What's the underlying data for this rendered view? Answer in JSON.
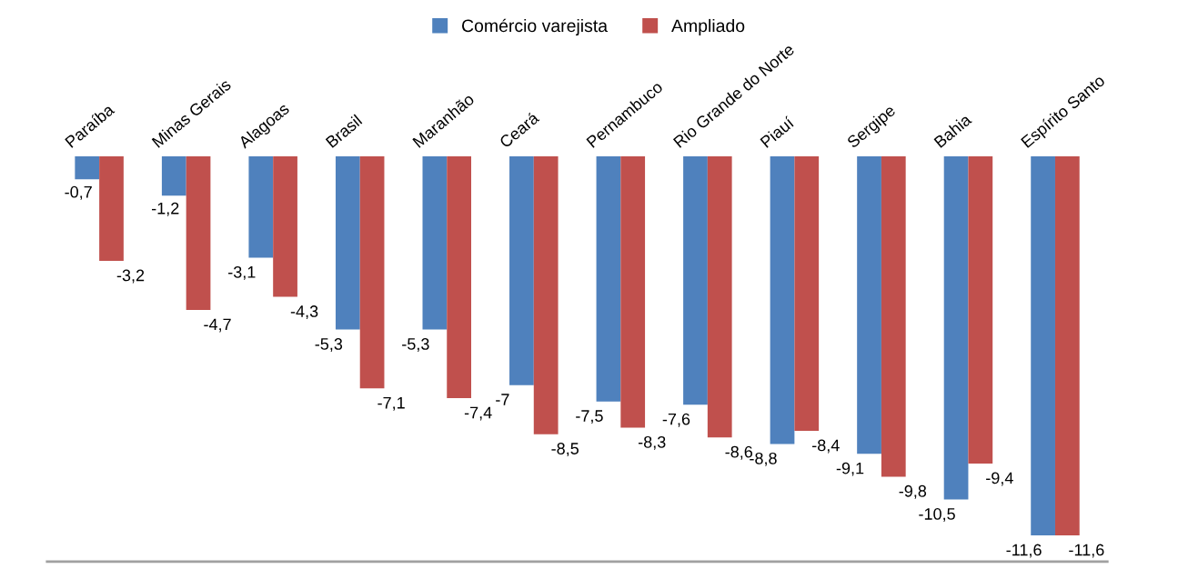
{
  "chart_data": {
    "type": "bar",
    "categories": [
      "Paraíba",
      "Minas Gerais",
      "Alagoas",
      "Brasil",
      "Maranhão",
      "Ceará",
      "Pernambuco",
      "Rio Grande do Norte",
      "Piauí",
      "Sergipe",
      "Bahia",
      "Espírito Santo"
    ],
    "series": [
      {
        "name": "Comércio varejista",
        "color": "#4f81bd",
        "values": [
          -0.7,
          -1.2,
          -3.1,
          -5.3,
          -5.3,
          -7,
          -7.5,
          -7.6,
          -8.8,
          -9.1,
          -10.5,
          -11.6
        ],
        "value_labels": [
          "-0,7",
          "-1,2",
          "-3,1",
          "-5,3",
          "-5,3",
          "-7",
          "-7,5",
          "-7,6",
          "-8,8",
          "-9,1",
          "-10,5",
          "-11,6"
        ]
      },
      {
        "name": "Ampliado",
        "color": "#c0504d",
        "values": [
          -3.2,
          -4.7,
          -4.3,
          -7.1,
          -7.4,
          -8.5,
          -8.3,
          -8.6,
          -8.4,
          -9.8,
          -9.4,
          -11.6
        ],
        "value_labels": [
          "-3,2",
          "-4,7",
          "-4,3",
          "-7,1",
          "-7,4",
          "-8,5",
          "-8,3",
          "-8,6",
          "-8,4",
          "-9,8",
          "-9,4",
          "-11,6"
        ]
      }
    ],
    "ylim": [
      -12.4,
      0
    ],
    "tick_labels": false,
    "legend": "top"
  }
}
